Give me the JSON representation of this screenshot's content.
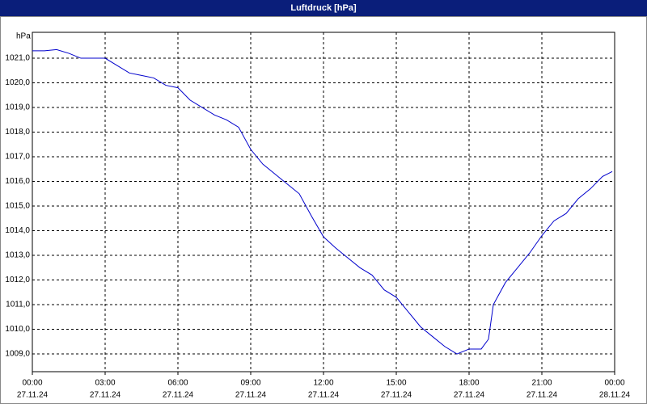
{
  "chart_data": {
    "type": "line",
    "title": "Luftdruck [hPa]",
    "y_label": "hPa",
    "x": [
      0,
      0.5,
      1,
      1.5,
      2,
      2.5,
      3,
      3.5,
      4,
      4.5,
      5,
      5.5,
      6,
      6.5,
      7,
      7.5,
      8,
      8.5,
      9,
      9.5,
      10,
      10.5,
      11,
      11.5,
      12,
      12.5,
      13,
      13.5,
      14,
      14.5,
      15,
      15.5,
      16,
      16.5,
      17,
      17.5,
      18,
      18.5,
      18.8,
      19,
      19.5,
      20,
      20.5,
      21,
      21.5,
      22,
      22.5,
      23,
      23.5,
      23.9
    ],
    "series": [
      {
        "name": "Luftdruck",
        "color": "#0000cc",
        "values": [
          1021.3,
          1021.3,
          1021.35,
          1021.2,
          1021.0,
          1021.0,
          1021.0,
          1020.7,
          1020.4,
          1020.3,
          1020.2,
          1019.9,
          1019.8,
          1019.3,
          1019.0,
          1018.7,
          1018.5,
          1018.2,
          1017.3,
          1016.7,
          1016.3,
          1015.9,
          1015.5,
          1014.6,
          1013.75,
          1013.3,
          1012.9,
          1012.5,
          1012.2,
          1011.6,
          1011.3,
          1010.7,
          1010.1,
          1009.7,
          1009.3,
          1009.0,
          1009.2,
          1009.2,
          1009.6,
          1011.0,
          1011.9,
          1012.5,
          1013.1,
          1013.8,
          1014.4,
          1014.7,
          1015.3,
          1015.7,
          1016.2,
          1016.4
        ]
      }
    ],
    "xlim": [
      0,
      24
    ],
    "xticks": [
      {
        "value": 0,
        "label": "00:00",
        "sublabel": "27.11.24"
      },
      {
        "value": 3,
        "label": "03:00",
        "sublabel": "27.11.24"
      },
      {
        "value": 6,
        "label": "06:00",
        "sublabel": "27.11.24"
      },
      {
        "value": 9,
        "label": "09:00",
        "sublabel": "27.11.24"
      },
      {
        "value": 12,
        "label": "12:00",
        "sublabel": "27.11.24"
      },
      {
        "value": 15,
        "label": "15:00",
        "sublabel": "27.11.24"
      },
      {
        "value": 18,
        "label": "18:00",
        "sublabel": "27.11.24"
      },
      {
        "value": 21,
        "label": "21:00",
        "sublabel": "27.11.24"
      },
      {
        "value": 24,
        "label": "00:00",
        "sublabel": "28.11.24"
      }
    ],
    "ylim": [
      1008.28,
      1022.05
    ],
    "yticks": [
      {
        "value": 1009,
        "label": "1009,0"
      },
      {
        "value": 1010,
        "label": "1010,0"
      },
      {
        "value": 1011,
        "label": "1011,0"
      },
      {
        "value": 1012,
        "label": "1012,0"
      },
      {
        "value": 1013,
        "label": "1013,0"
      },
      {
        "value": 1014,
        "label": "1014,0"
      },
      {
        "value": 1015,
        "label": "1015,0"
      },
      {
        "value": 1016,
        "label": "1016,0"
      },
      {
        "value": 1017,
        "label": "1017,0"
      },
      {
        "value": 1018,
        "label": "1018,0"
      },
      {
        "value": 1019,
        "label": "1019,0"
      },
      {
        "value": 1020,
        "label": "1020,0"
      },
      {
        "value": 1021,
        "label": "1021,0"
      }
    ],
    "grid": true
  }
}
